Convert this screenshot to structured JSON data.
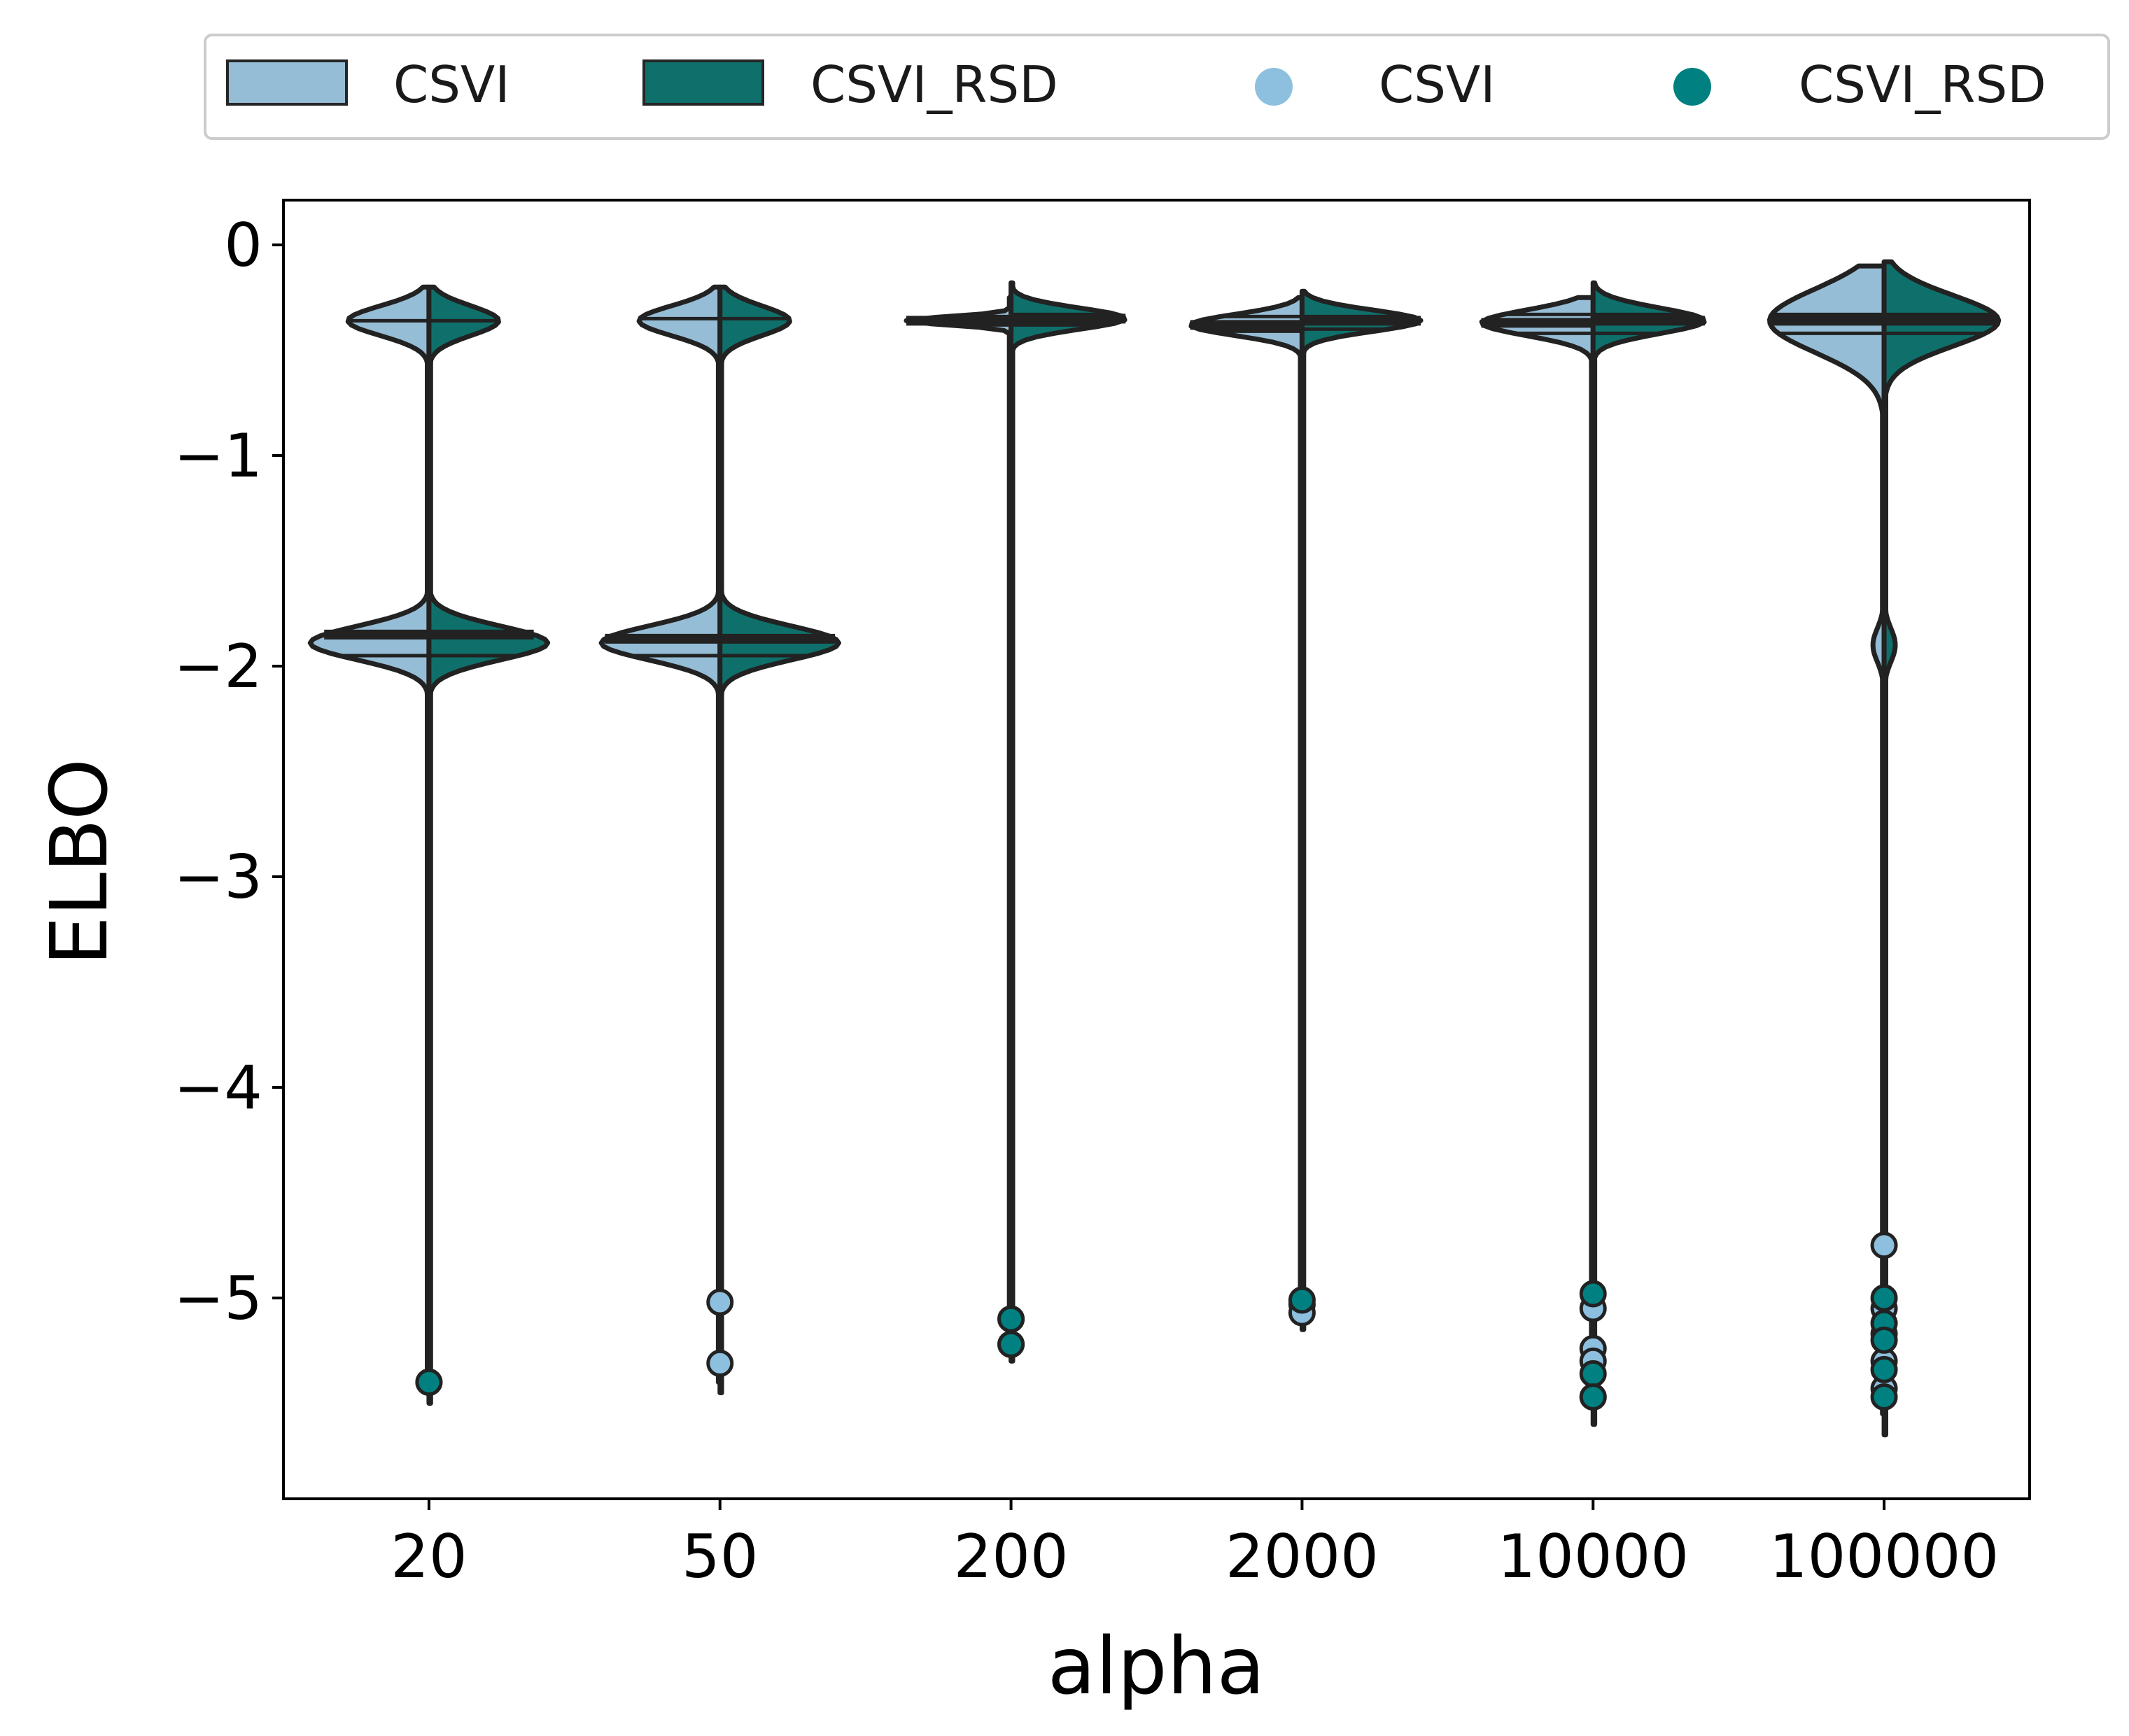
{
  "chart_data": {
    "type": "violin",
    "xlabel": "alpha",
    "ylabel": "ELBO",
    "categories": [
      "20",
      "50",
      "200",
      "2000",
      "10000",
      "100000"
    ],
    "yticks": [
      0,
      -1,
      -2,
      -3,
      -4,
      -5
    ],
    "ytick_labels": [
      "0",
      "−1",
      "−2",
      "−3",
      "−4",
      "−5"
    ],
    "ylim": [
      -5.95,
      0.2
    ],
    "grid": false,
    "legend_position": "top-center, above plot",
    "legend": [
      {
        "label": "CSVI",
        "kind": "patch",
        "color": "#96bdd6"
      },
      {
        "label": "CSVI_RSD",
        "kind": "patch",
        "color": "#0f706b"
      },
      {
        "label": "CSVI",
        "kind": "marker",
        "color": "#8dbfde"
      },
      {
        "label": "CSVI_RSD",
        "kind": "marker",
        "color": "#008080"
      }
    ],
    "series": [
      {
        "name": "CSVI",
        "side": "left",
        "color": "#96bdd6",
        "violins": [
          {
            "category": "20",
            "min": -5.45,
            "max": -0.2,
            "modes": [
              {
                "center": -0.36,
                "width": 0.58,
                "spread": 0.07
              },
              {
                "center": -1.89,
                "width": 0.85,
                "spread": 0.08
              }
            ],
            "quartiles": [
              -1.95,
              -1.85,
              -0.36
            ]
          },
          {
            "category": "50",
            "min": -5.4,
            "max": -0.2,
            "modes": [
              {
                "center": -0.36,
                "width": 0.58,
                "spread": 0.07
              },
              {
                "center": -1.89,
                "width": 0.85,
                "spread": 0.08
              }
            ],
            "quartiles": [
              -1.95,
              -1.87,
              -0.35
            ]
          },
          {
            "category": "200",
            "min": -5.25,
            "max": -0.25,
            "modes": [
              {
                "center": -0.36,
                "width": 0.75,
                "spread": 0.02
              }
            ],
            "quartiles": [
              -0.38,
              -0.36,
              -0.34
            ]
          },
          {
            "category": "2000",
            "min": -5.1,
            "max": -0.25,
            "modes": [
              {
                "center": -0.38,
                "width": 0.8,
                "spread": 0.05
              }
            ],
            "quartiles": [
              -0.41,
              -0.38,
              -0.34
            ]
          },
          {
            "category": "10000",
            "min": -5.5,
            "max": -0.25,
            "modes": [
              {
                "center": -0.37,
                "width": 0.8,
                "spread": 0.06
              }
            ],
            "quartiles": [
              -0.42,
              -0.37,
              -0.33
            ]
          },
          {
            "category": "100000",
            "min": -5.55,
            "max": -0.1,
            "modes": [
              {
                "center": -0.36,
                "width": 0.82,
                "spread": 0.15
              },
              {
                "center": -1.9,
                "width": 0.08,
                "spread": 0.08
              }
            ],
            "quartiles": [
              -0.42,
              -0.36,
              -0.33
            ]
          }
        ],
        "outliers": [
          {
            "category": "20",
            "values": [
              -5.4
            ]
          },
          {
            "category": "50",
            "values": [
              -5.02,
              -5.31
            ]
          },
          {
            "category": "200",
            "values": [
              -5.1,
              -5.22
            ]
          },
          {
            "category": "2000",
            "values": [
              -5.03,
              -5.07
            ]
          },
          {
            "category": "10000",
            "values": [
              -5.05,
              -5.24,
              -5.3,
              -5.47
            ]
          },
          {
            "category": "100000",
            "values": [
              -4.75,
              -5.05,
              -5.17,
              -5.3,
              -5.43
            ]
          }
        ]
      },
      {
        "name": "CSVI_RSD",
        "side": "right",
        "color": "#0f706b",
        "violins": [
          {
            "category": "20",
            "min": -5.5,
            "max": -0.2,
            "modes": [
              {
                "center": -0.36,
                "width": 0.5,
                "spread": 0.07
              },
              {
                "center": -1.89,
                "width": 0.85,
                "spread": 0.08
              }
            ],
            "quartiles": [
              -1.95,
              -1.85,
              -0.36
            ]
          },
          {
            "category": "50",
            "min": -5.45,
            "max": -0.2,
            "modes": [
              {
                "center": -0.36,
                "width": 0.5,
                "spread": 0.07
              },
              {
                "center": -1.89,
                "width": 0.85,
                "spread": 0.08
              }
            ],
            "quartiles": [
              -1.95,
              -1.87,
              -0.35
            ]
          },
          {
            "category": "200",
            "min": -5.3,
            "max": -0.18,
            "modes": [
              {
                "center": -0.35,
                "width": 0.82,
                "spread": 0.05
              }
            ],
            "quartiles": [
              -0.38,
              -0.35,
              -0.33
            ]
          },
          {
            "category": "2000",
            "min": -5.15,
            "max": -0.22,
            "modes": [
              {
                "center": -0.36,
                "width": 0.85,
                "spread": 0.05
              }
            ],
            "quartiles": [
              -0.4,
              -0.36,
              -0.34
            ]
          },
          {
            "category": "10000",
            "min": -5.6,
            "max": -0.18,
            "modes": [
              {
                "center": -0.36,
                "width": 0.8,
                "spread": 0.06
              }
            ],
            "quartiles": [
              -0.42,
              -0.36,
              -0.33
            ]
          },
          {
            "category": "100000",
            "min": -5.65,
            "max": -0.08,
            "modes": [
              {
                "center": -0.36,
                "width": 0.82,
                "spread": 0.12
              },
              {
                "center": -1.9,
                "width": 0.08,
                "spread": 0.08
              }
            ],
            "quartiles": [
              -0.42,
              -0.36,
              -0.33
            ]
          }
        ],
        "outliers": [
          {
            "category": "20",
            "values": [
              -5.4
            ]
          },
          {
            "category": "50",
            "values": []
          },
          {
            "category": "200",
            "values": [
              -5.1,
              -5.22
            ]
          },
          {
            "category": "2000",
            "values": [
              -5.01
            ]
          },
          {
            "category": "10000",
            "values": [
              -4.98,
              -5.36,
              -5.47
            ]
          },
          {
            "category": "100000",
            "values": [
              -5.0,
              -5.12,
              -5.2,
              -5.34,
              -5.47
            ]
          }
        ]
      }
    ]
  }
}
